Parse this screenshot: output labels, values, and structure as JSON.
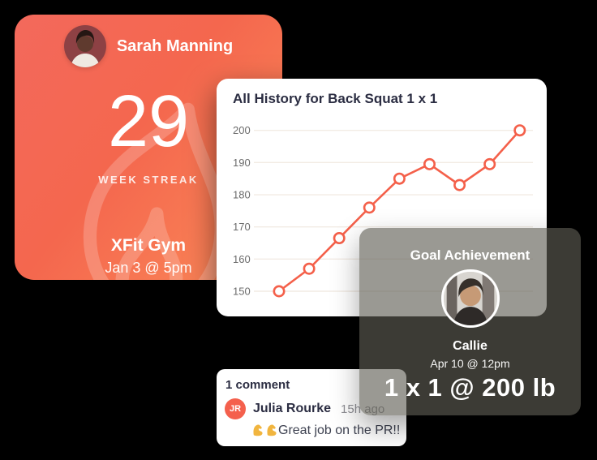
{
  "streak_card": {
    "user_name": "Sarah Manning",
    "streak_count": "29",
    "streak_label": "WEEK STREAK",
    "gym_name": "XFit Gym",
    "session_datetime": "Jan 3 @ 5pm",
    "gradient_start": "#f3695c",
    "gradient_end": "#fb8a58"
  },
  "chart_card": {
    "title": "All History for Back Squat 1 x 1"
  },
  "chart_data": {
    "type": "line",
    "title": "All History for Back Squat 1 x 1",
    "x": [
      1,
      2,
      3,
      4,
      5,
      6,
      7,
      8,
      9
    ],
    "values": [
      150,
      157,
      166.5,
      176,
      185,
      189.5,
      183,
      189.5,
      200
    ],
    "yticks": [
      150,
      160,
      170,
      180,
      190,
      200
    ],
    "ylim": [
      150,
      200
    ],
    "xlabel": "",
    "ylabel": "",
    "x_tick_labels": [],
    "grid": "horizontal",
    "legend": "none",
    "line_color": "#f4604a",
    "marker": "open-circle",
    "marker_fill": "#ffffff",
    "gridline_color": "#f2ebe4",
    "tick_label_color": "#6b6b6b"
  },
  "goal_card": {
    "title": "Goal Achievement",
    "user_name": "Callie",
    "datetime": "Apr 10 @ 12pm",
    "achievement": "1 x 1 @ 200 lb",
    "overlay_color": "rgba(95,94,84,0.63)"
  },
  "comment_card": {
    "header": "1 comment",
    "comment": {
      "author_initials": "JR",
      "author_name": "Julia Rourke",
      "time_ago": "15h ago",
      "emoji": "💪💪",
      "text": "Great job on the PR!!"
    }
  },
  "icons": {
    "flame": "flame-watermark-icon",
    "biceps": "flex-biceps-icon"
  },
  "colors": {
    "accent_coral": "#f4604a",
    "heading_navy": "#2b2d42",
    "muted_gray": "#8e8e94",
    "background": "#000000"
  }
}
